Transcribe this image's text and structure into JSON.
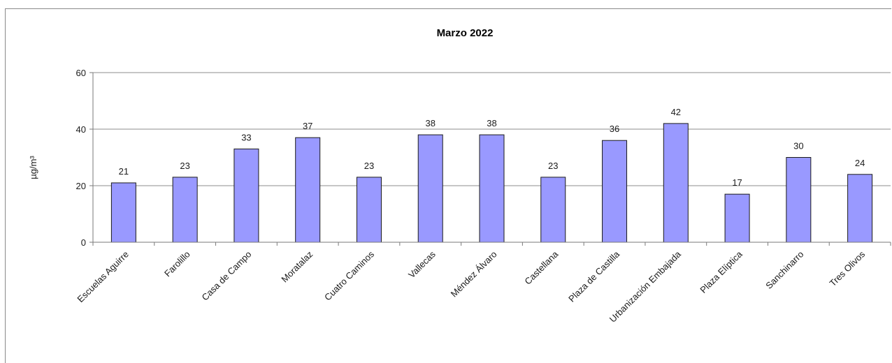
{
  "chart_data": {
    "type": "bar",
    "title": "Marzo 2022",
    "ylabel": "µg/m³",
    "xlabel": "",
    "ylim": [
      0,
      60
    ],
    "yticks": [
      0,
      20,
      40,
      60
    ],
    "grid": true,
    "bar_color": "#9999ff",
    "categories": [
      "Escuelas Aguirre",
      "Farolillo",
      "Casa de Campo",
      "Moratalaz",
      "Cuatro Caminos",
      "Vallecas",
      "Méndez Álvaro",
      "Castellana",
      "Plaza de Castilla",
      "Urbanización Embajada",
      "Plaza Elíptica",
      "Sanchinarro",
      "Tres Olivos"
    ],
    "values": [
      21,
      23,
      33,
      37,
      23,
      38,
      38,
      23,
      36,
      42,
      17,
      30,
      24
    ]
  }
}
